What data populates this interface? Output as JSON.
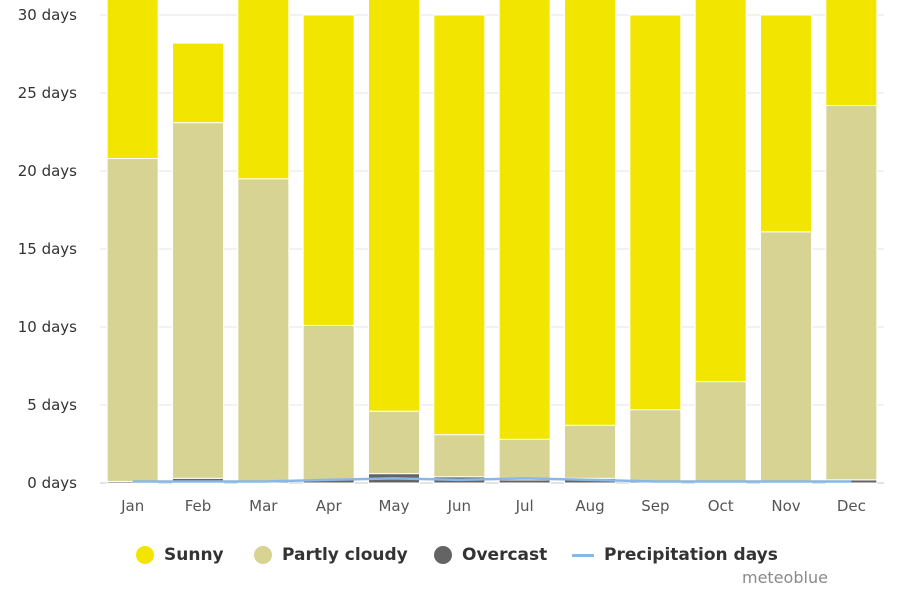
{
  "chart_data": {
    "type": "bar",
    "stacked": true,
    "categories": [
      "Jan",
      "Feb",
      "Mar",
      "Apr",
      "May",
      "Jun",
      "Jul",
      "Aug",
      "Sep",
      "Oct",
      "Nov",
      "Dec"
    ],
    "y_ticks": [
      "0 days",
      "5 days",
      "10 days",
      "15 days",
      "20 days",
      "25 days",
      "30 days"
    ],
    "ylim": [
      0,
      30
    ],
    "grid": true,
    "legend_position": "bottom",
    "series": [
      {
        "name": "Overcast",
        "color": "#646464",
        "values": [
          0.1,
          0.3,
          0.1,
          0.2,
          0.6,
          0.4,
          0.2,
          0.3,
          0.1,
          0.1,
          0.1,
          0.2
        ]
      },
      {
        "name": "Partly cloudy",
        "color": "#d6d393",
        "values": [
          20.7,
          22.8,
          19.4,
          9.9,
          4.0,
          2.7,
          2.6,
          3.4,
          4.6,
          6.4,
          16.0,
          24.0
        ]
      },
      {
        "name": "Sunny",
        "color": "#f2e600",
        "values": [
          10.2,
          5.1,
          11.5,
          19.9,
          26.4,
          26.9,
          28.2,
          27.3,
          25.3,
          24.5,
          13.9,
          6.8
        ]
      },
      {
        "name": "Precipitation days",
        "type": "line",
        "color": "#8ab8e6",
        "values": [
          0.1,
          0.1,
          0.1,
          0.2,
          0.3,
          0.2,
          0.3,
          0.2,
          0.1,
          0.1,
          0.1,
          0.1
        ]
      }
    ]
  },
  "legend": {
    "sunny": "Sunny",
    "partly_cloudy": "Partly cloudy",
    "overcast": "Overcast",
    "precipitation": "Precipitation days"
  },
  "credit": "meteoblue"
}
